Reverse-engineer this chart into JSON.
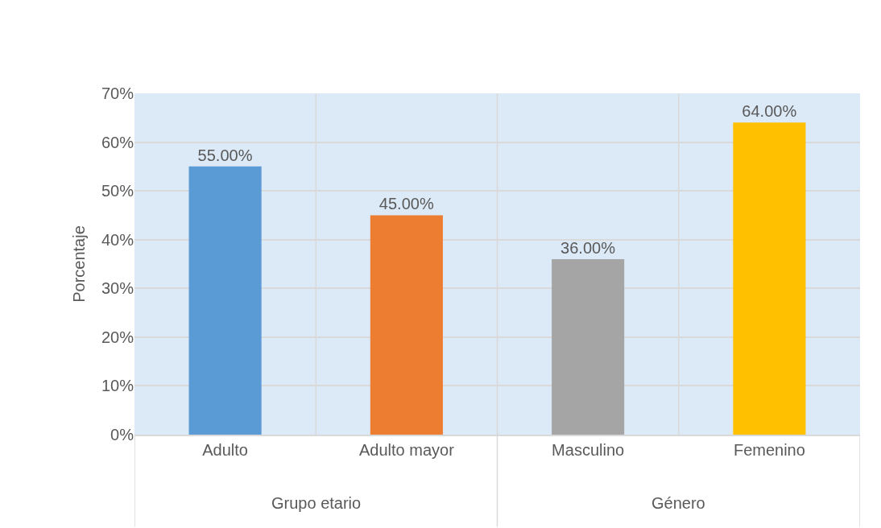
{
  "chart_data": {
    "type": "bar",
    "ylabel": "Porcentaje",
    "categories": [
      "Adulto",
      "Adulto mayor",
      "Masculino",
      "Femenino"
    ],
    "values": [
      55,
      45,
      36,
      64
    ],
    "colors": [
      "#5b9bd5",
      "#ed7d31",
      "#a5a5a5",
      "#ffc000"
    ],
    "value_labels": [
      "55.00%",
      "45.00%",
      "36.00%",
      "64.00%"
    ],
    "ylim": [
      0,
      70
    ],
    "yticks": [
      {
        "value": 0,
        "label": "0%"
      },
      {
        "value": 10,
        "label": "10%"
      },
      {
        "value": 20,
        "label": "20%"
      },
      {
        "value": 30,
        "label": "30%"
      },
      {
        "value": 40,
        "label": "40%"
      },
      {
        "value": 50,
        "label": "50%"
      },
      {
        "value": 60,
        "label": "60%"
      },
      {
        "value": 70,
        "label": "70%"
      }
    ],
    "grid": true,
    "annotations": [
      "Grupo etario",
      "Género"
    ]
  }
}
